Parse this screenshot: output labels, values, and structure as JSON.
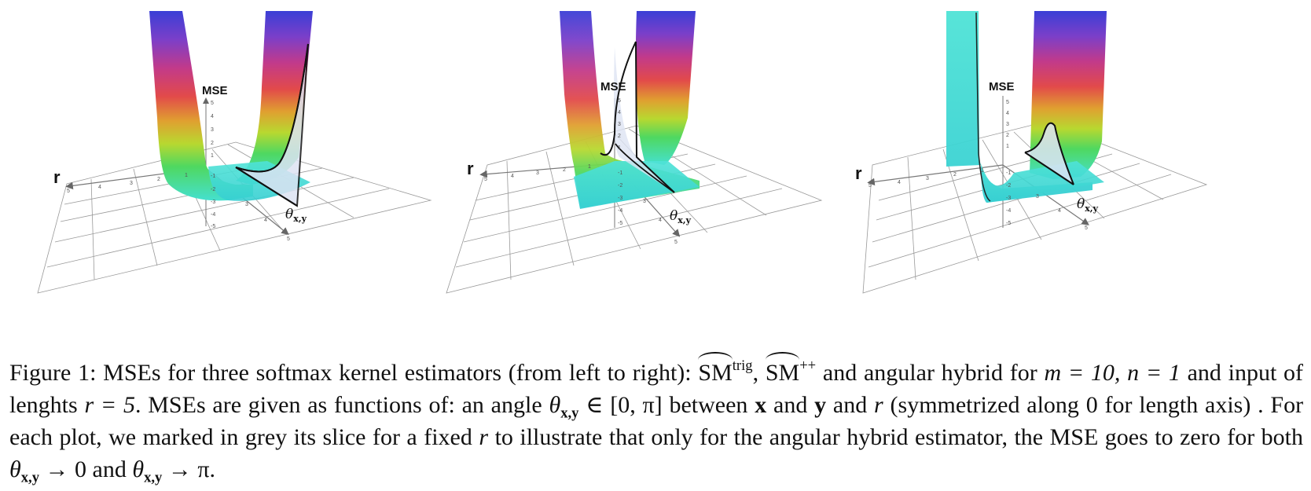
{
  "figure": {
    "panels": [
      {
        "name": "sm-trig",
        "mse_label": "MSE",
        "r_label": "r",
        "theta_label": "θ",
        "theta_sub": "x,y",
        "mse_ticks": [
          "5",
          "4",
          "3",
          "2",
          "1",
          "-1",
          "-2",
          "-3",
          "-4",
          "-5"
        ],
        "r_ticks": [
          "5",
          "4",
          "3",
          "2",
          "1"
        ],
        "theta_ticks": [
          "3",
          "4",
          "5"
        ]
      },
      {
        "name": "sm-plusplus",
        "mse_label": "MSE",
        "r_label": "r",
        "theta_label": "θ",
        "theta_sub": "x,y",
        "mse_ticks": [
          "5",
          "4",
          "3",
          "2",
          "1",
          "-1",
          "-2",
          "-3",
          "-4",
          "-5"
        ],
        "r_ticks": [
          "5",
          "4",
          "3",
          "2",
          "1"
        ],
        "theta_ticks": [
          "3",
          "4",
          "5"
        ]
      },
      {
        "name": "angular-hybrid",
        "mse_label": "MSE",
        "r_label": "r",
        "theta_label": "θ",
        "theta_sub": "x,y",
        "mse_ticks": [
          "5",
          "4",
          "3",
          "2",
          "1",
          "-1",
          "-2",
          "-3",
          "-4",
          "-5"
        ],
        "r_ticks": [
          "5",
          "4",
          "3",
          "2",
          "1"
        ],
        "theta_ticks": [
          "3",
          "4",
          "5"
        ]
      }
    ]
  },
  "caption": {
    "label": "Figure 1:",
    "p1": "MSEs for three softmax kernel estimators (from left to right):",
    "sm": "SM",
    "trig": "trig",
    "comma": ",",
    "plusplus": "++",
    "p2": "and angular hybrid for",
    "m_eq": "m = 10, n = 1",
    "p3": "and input of lenghts",
    "r_eq": "r = 5",
    "p4": ". MSEs are given as functions of: an angle",
    "theta": "θ",
    "sub_xy": "x,y",
    "interval": "∈ [0, π]",
    "p5": "between",
    "x": "x",
    "and": "and",
    "y": "y",
    "and_r": "and",
    "r": "r",
    "p6": "(symmetrized along 0 for length axis) . For each plot, we marked in grey its slice for a fixed",
    "r2": "r",
    "p7": "to illustrate that only for the angular hybrid estimator, the MSE goes to zero for both",
    "to0": "→ 0",
    "and2": "and",
    "topi": "→ π."
  }
}
